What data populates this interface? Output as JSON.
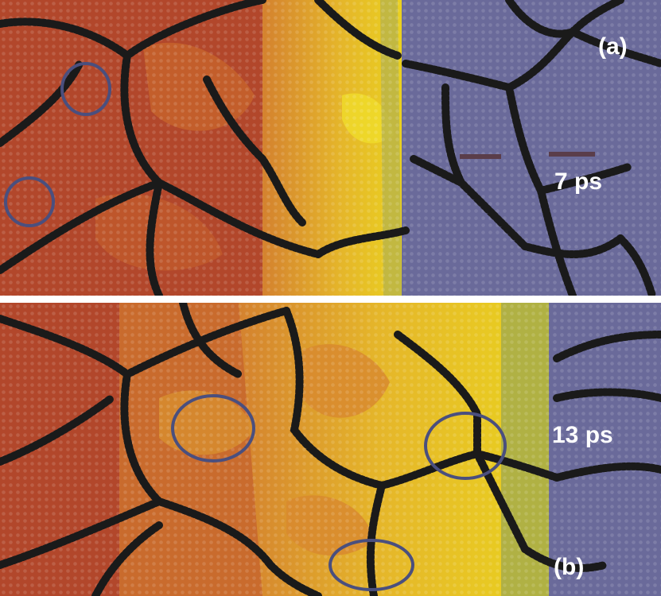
{
  "panels": [
    {
      "panel_label": "(a)",
      "time_label": "7 ps"
    },
    {
      "panel_label": "(b)",
      "time_label": "13 ps"
    }
  ],
  "colors": {
    "solid_red": "#b2472b",
    "transition_orange": "#d4822f",
    "molten_yellow": "#ead21f",
    "olive": "#a6ab4a",
    "unmelted_blue": "#6a6a9a",
    "grain_boundary_atoms": "#1a1a1a",
    "circle_marker": "#4a4f7e",
    "text": "#ffffff"
  }
}
